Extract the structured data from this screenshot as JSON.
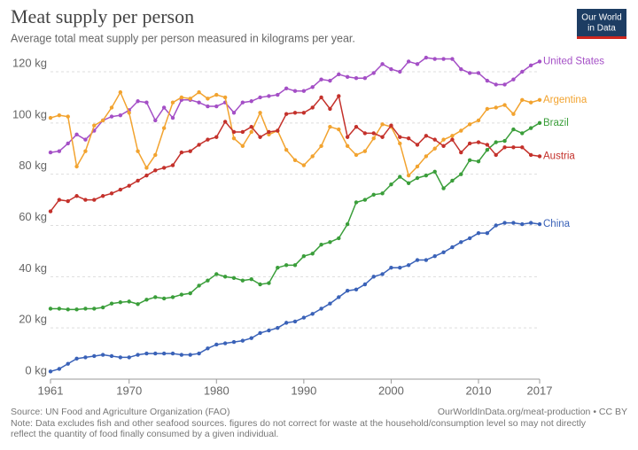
{
  "chart_data": {
    "type": "line",
    "title": "Meat supply per person",
    "subtitle": "Average total meat supply per person measured in kilograms per year.",
    "logo": [
      "Our World",
      "in Data"
    ],
    "source": "Source: UN Food and Agriculture Organization (FAO)",
    "url": "OurWorldInData.org/meat-production • CC BY",
    "note": [
      "Note: Data excludes fish and other seafood sources. figures do not correct for waste at the household/consumption level so may not directly",
      "reflect the quantity of food finally consumed by a given individual."
    ],
    "x": [
      1961,
      1962,
      1963,
      1964,
      1965,
      1966,
      1967,
      1968,
      1969,
      1970,
      1971,
      1972,
      1973,
      1974,
      1975,
      1976,
      1977,
      1978,
      1979,
      1980,
      1981,
      1982,
      1983,
      1984,
      1985,
      1986,
      1987,
      1988,
      1989,
      1990,
      1991,
      1992,
      1993,
      1994,
      1995,
      1996,
      1997,
      1998,
      1999,
      2000,
      2001,
      2002,
      2003,
      2004,
      2005,
      2006,
      2007,
      2008,
      2009,
      2010,
      2011,
      2012,
      2013,
      2014,
      2015,
      2016,
      2017
    ],
    "xlim": [
      1961,
      2017
    ],
    "xticks": [
      1961,
      1970,
      1980,
      1990,
      2000,
      2010,
      2017
    ],
    "ylim": [
      0,
      120
    ],
    "yticks": [
      {
        "value": 0,
        "label": "0 kg"
      },
      {
        "value": 20,
        "label": "20 kg"
      },
      {
        "value": 40,
        "label": "40 kg"
      },
      {
        "value": 60,
        "label": "60 kg"
      },
      {
        "value": 80,
        "label": "80 kg"
      },
      {
        "value": 100,
        "label": "100 kg"
      },
      {
        "value": 120,
        "label": "120 kg"
      }
    ],
    "grid": true,
    "series": [
      {
        "name": "United States",
        "color": "#a44fc6",
        "values": [
          88.5,
          89,
          92,
          95.5,
          93.5,
          97,
          101,
          102.5,
          103,
          105,
          108.5,
          108,
          101,
          106,
          102,
          109,
          109,
          108,
          106.5,
          106.5,
          108,
          104,
          108,
          108.5,
          110,
          110.5,
          111,
          113.5,
          112.5,
          112.5,
          114,
          117,
          116.5,
          119,
          118,
          117.5,
          117.5,
          119.5,
          123,
          121,
          120,
          124,
          123,
          125.5,
          125,
          125,
          125,
          121,
          119.5,
          119.5,
          116.5,
          115,
          115,
          117,
          120,
          122.5,
          124
        ]
      },
      {
        "name": "Argentina",
        "color": "#f2a32f",
        "values": [
          102,
          103,
          102.5,
          83,
          89,
          99,
          101,
          106,
          112,
          104,
          89,
          82.5,
          87.5,
          98,
          108,
          110,
          109.5,
          112,
          109.5,
          111,
          110,
          94,
          91,
          96.5,
          104,
          95.5,
          97,
          89.5,
          85.5,
          83.5,
          87,
          91,
          98.5,
          97.5,
          91,
          87.5,
          89,
          94,
          99.5,
          98.5,
          92,
          79.5,
          83,
          87,
          90,
          93.5,
          95,
          97,
          99.5,
          101,
          105.5,
          106,
          107,
          103.5,
          109,
          108,
          109
        ]
      },
      {
        "name": "Brazil",
        "color": "#3a9e3a",
        "values": [
          27.5,
          27.5,
          27.2,
          27.2,
          27.5,
          27.5,
          28,
          29.5,
          30,
          30.3,
          29.3,
          31,
          32,
          31.5,
          32,
          33,
          33.5,
          36.5,
          38.5,
          41,
          40,
          39.5,
          38.5,
          39,
          37,
          37.5,
          43.5,
          44.5,
          44.5,
          48,
          49,
          52.5,
          53.5,
          55,
          60.5,
          69,
          70,
          72,
          72.5,
          76,
          79,
          76.5,
          78.5,
          79.5,
          81,
          74.5,
          77.5,
          80,
          85.5,
          85,
          89.5,
          92.5,
          93,
          97.5,
          96,
          98,
          100
        ]
      },
      {
        "name": "Austria",
        "color": "#c4312b",
        "values": [
          65.5,
          70,
          69.5,
          71.5,
          70,
          70,
          71.5,
          72.5,
          74,
          75.5,
          77.5,
          79.5,
          81.5,
          82.5,
          83.5,
          88.5,
          89,
          91.5,
          93.5,
          94.5,
          100.5,
          96.5,
          96.5,
          98.5,
          94.5,
          96.5,
          97,
          103.5,
          104,
          104,
          106,
          110,
          105.5,
          110.5,
          94.5,
          98.5,
          96,
          96,
          94.5,
          99,
          94.5,
          94,
          91.5,
          95,
          93.5,
          91,
          93.5,
          88.5,
          92,
          92.5,
          91.5,
          87.5,
          90.5,
          90.5,
          90.5,
          87.5,
          87
        ]
      },
      {
        "name": "China",
        "color": "#3a62b8",
        "values": [
          3,
          4,
          6,
          8,
          8.5,
          9,
          9.5,
          9,
          8.5,
          8.5,
          9.5,
          10,
          10,
          10,
          10,
          9.5,
          9.5,
          10,
          12,
          13.5,
          14,
          14.5,
          15,
          16,
          18,
          19,
          20,
          22,
          22.5,
          24,
          25.5,
          27.5,
          29.5,
          32,
          34.5,
          35,
          37,
          40,
          41,
          43.5,
          43.5,
          44.5,
          46.5,
          46.5,
          48,
          49.5,
          51.5,
          53.5,
          55,
          57,
          57,
          60,
          61,
          61,
          60.5,
          61,
          60.5
        ]
      }
    ]
  }
}
